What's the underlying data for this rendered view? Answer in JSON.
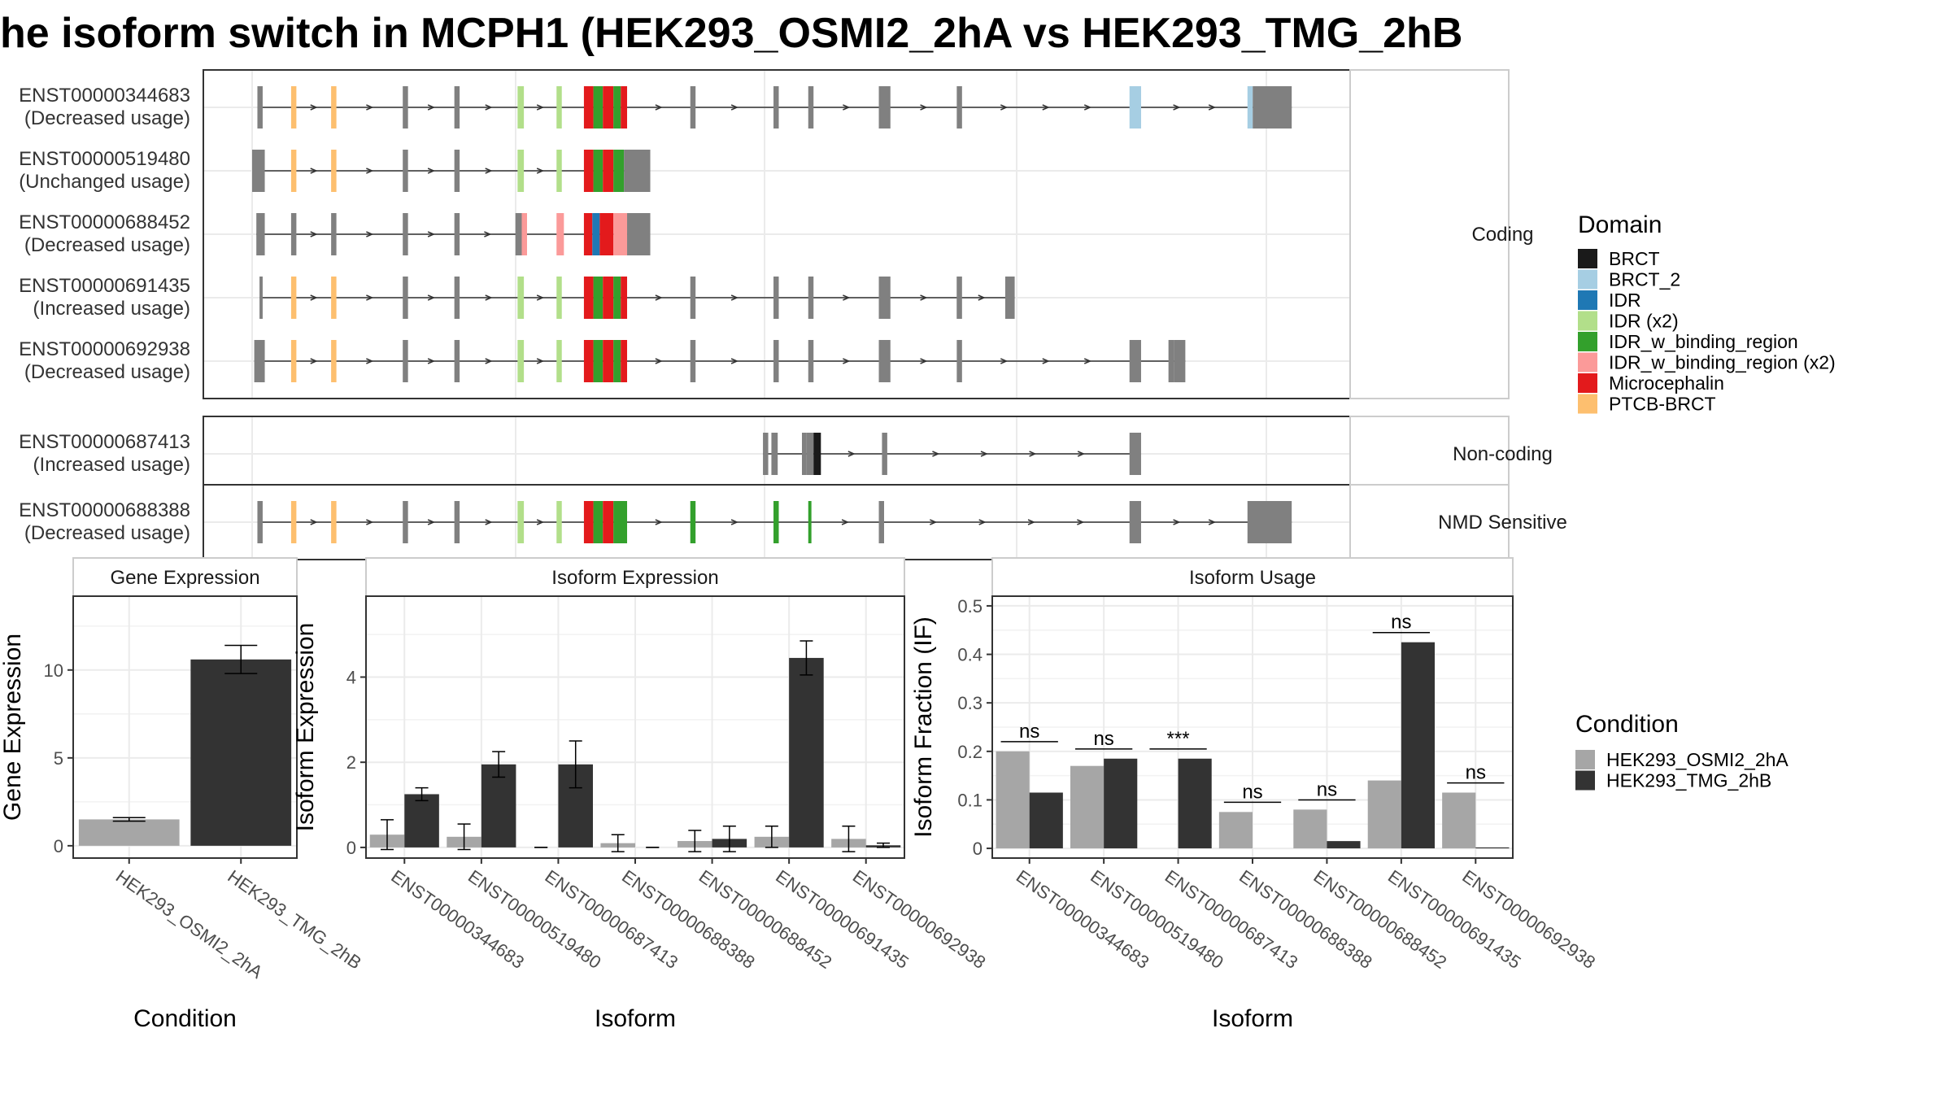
{
  "title": "he isoform switch in MCPH1 (HEK293_OSMI2_2hA vs HEK293_TMG_2hB",
  "colors": {
    "BRCT": "#1a1a1a",
    "BRCT_2": "#a6cee3",
    "IDR": "#1f78b4",
    "IDR (x2)": "#b2df8a",
    "IDR_w_binding_region": "#33a02c",
    "IDR_w_binding_region (x2)": "#fb9a99",
    "Microcephalin": "#e31a1c",
    "PTCB-BRCT": "#fdbf6f",
    "exon": "#808080",
    "cond_a": "#a6a6a6",
    "cond_b": "#333333"
  },
  "structure": {
    "genome_range": [
      0,
      100
    ],
    "panels": [
      {
        "label": "Coding",
        "isoforms": [
          {
            "id": "ENST00000344683",
            "usage": "(Decreased usage)",
            "exons": [
              [
                0.5,
                1.0,
                "exon"
              ],
              [
                3.7,
                4.2,
                "PTCB-BRCT"
              ],
              [
                7.5,
                8.0,
                "PTCB-BRCT"
              ],
              [
                14.3,
                14.8,
                "exon"
              ],
              [
                19.2,
                19.7,
                "exon"
              ],
              [
                25.2,
                25.8,
                "IDR (x2)"
              ],
              [
                28.9,
                29.4,
                "IDR (x2)"
              ],
              [
                31.5,
                32.4,
                "Microcephalin"
              ],
              [
                32.4,
                33.3,
                "IDR_w_binding_region"
              ],
              [
                33.3,
                34.3,
                "Microcephalin"
              ],
              [
                34.3,
                35.0,
                "IDR_w_binding_region"
              ],
              [
                35.0,
                35.6,
                "Microcephalin"
              ],
              [
                41.6,
                42.1,
                "exon"
              ],
              [
                49.5,
                50.0,
                "exon"
              ],
              [
                52.8,
                53.3,
                "exon"
              ],
              [
                59.5,
                60.6,
                "exon"
              ],
              [
                66.9,
                67.4,
                "exon"
              ],
              [
                83.3,
                84.4,
                "BRCT_2"
              ],
              [
                94.5,
                95.0,
                "BRCT_2"
              ],
              [
                95.0,
                98.7,
                "exon"
              ]
            ]
          },
          {
            "id": "ENST00000519480",
            "usage": "(Unchanged usage)",
            "exons": [
              [
                0.0,
                1.2,
                "exon"
              ],
              [
                3.7,
                4.2,
                "PTCB-BRCT"
              ],
              [
                7.5,
                8.0,
                "PTCB-BRCT"
              ],
              [
                14.3,
                14.8,
                "exon"
              ],
              [
                19.2,
                19.7,
                "exon"
              ],
              [
                25.2,
                25.8,
                "IDR (x2)"
              ],
              [
                28.9,
                29.4,
                "IDR (x2)"
              ],
              [
                31.5,
                32.4,
                "Microcephalin"
              ],
              [
                32.4,
                33.3,
                "IDR_w_binding_region"
              ],
              [
                33.3,
                34.3,
                "Microcephalin"
              ],
              [
                34.3,
                35.3,
                "IDR_w_binding_region"
              ],
              [
                35.3,
                37.8,
                "exon"
              ]
            ]
          },
          {
            "id": "ENST00000688452",
            "usage": "(Decreased usage)",
            "exons": [
              [
                0.4,
                1.2,
                "exon"
              ],
              [
                3.7,
                4.2,
                "exon"
              ],
              [
                7.5,
                8.0,
                "exon"
              ],
              [
                14.3,
                14.8,
                "exon"
              ],
              [
                19.2,
                19.7,
                "exon"
              ],
              [
                25.0,
                25.6,
                "exon"
              ],
              [
                25.6,
                26.1,
                "IDR_w_binding_region (x2)"
              ],
              [
                28.9,
                29.6,
                "IDR_w_binding_region (x2)"
              ],
              [
                31.5,
                32.3,
                "Microcephalin"
              ],
              [
                32.3,
                33.0,
                "IDR"
              ],
              [
                33.0,
                34.3,
                "Microcephalin"
              ],
              [
                34.3,
                35.6,
                "IDR_w_binding_region (x2)"
              ],
              [
                35.6,
                37.8,
                "exon"
              ]
            ]
          },
          {
            "id": "ENST00000691435",
            "usage": "(Increased usage)",
            "exons": [
              [
                0.7,
                1.0,
                "exon"
              ],
              [
                3.7,
                4.2,
                "PTCB-BRCT"
              ],
              [
                7.5,
                8.0,
                "PTCB-BRCT"
              ],
              [
                14.3,
                14.8,
                "exon"
              ],
              [
                19.2,
                19.7,
                "exon"
              ],
              [
                25.2,
                25.8,
                "IDR (x2)"
              ],
              [
                28.9,
                29.4,
                "IDR (x2)"
              ],
              [
                31.5,
                32.4,
                "Microcephalin"
              ],
              [
                32.4,
                33.3,
                "IDR_w_binding_region"
              ],
              [
                33.3,
                34.3,
                "Microcephalin"
              ],
              [
                34.3,
                35.0,
                "IDR_w_binding_region"
              ],
              [
                35.0,
                35.6,
                "Microcephalin"
              ],
              [
                41.6,
                42.1,
                "exon"
              ],
              [
                49.5,
                50.0,
                "exon"
              ],
              [
                52.8,
                53.3,
                "exon"
              ],
              [
                59.5,
                60.6,
                "exon"
              ],
              [
                66.9,
                67.4,
                "exon"
              ],
              [
                66.9,
                67.0,
                "exon"
              ],
              [
                71.5,
                72.4,
                "exon"
              ]
            ]
          },
          {
            "id": "ENST00000692938",
            "usage": "(Decreased usage)",
            "exons": [
              [
                0.2,
                1.2,
                "exon"
              ],
              [
                3.7,
                4.2,
                "PTCB-BRCT"
              ],
              [
                7.5,
                8.0,
                "PTCB-BRCT"
              ],
              [
                14.3,
                14.8,
                "exon"
              ],
              [
                19.2,
                19.7,
                "exon"
              ],
              [
                25.2,
                25.8,
                "IDR (x2)"
              ],
              [
                28.9,
                29.4,
                "IDR (x2)"
              ],
              [
                31.5,
                32.4,
                "Microcephalin"
              ],
              [
                32.4,
                33.3,
                "IDR_w_binding_region"
              ],
              [
                33.3,
                34.3,
                "Microcephalin"
              ],
              [
                34.3,
                35.0,
                "IDR_w_binding_region"
              ],
              [
                35.0,
                35.6,
                "Microcephalin"
              ],
              [
                41.6,
                42.1,
                "exon"
              ],
              [
                49.5,
                50.0,
                "exon"
              ],
              [
                52.8,
                53.3,
                "exon"
              ],
              [
                59.5,
                60.6,
                "exon"
              ],
              [
                66.9,
                67.4,
                "exon"
              ],
              [
                83.3,
                84.4,
                "exon"
              ],
              [
                87.0,
                87.5,
                "exon"
              ],
              [
                87.5,
                88.6,
                "exon"
              ]
            ]
          }
        ]
      },
      {
        "label": "Non-coding",
        "isoforms": [
          {
            "id": "ENST00000687413",
            "usage": "(Increased usage)",
            "exons": [
              [
                48.5,
                49.0,
                "exon"
              ],
              [
                49.3,
                49.9,
                "exon"
              ],
              [
                52.2,
                52.6,
                "exon"
              ],
              [
                52.6,
                53.3,
                "exon"
              ],
              [
                53.3,
                54.0,
                "BRCT"
              ],
              [
                59.8,
                60.3,
                "exon"
              ],
              [
                83.3,
                84.4,
                "exon"
              ]
            ]
          }
        ]
      },
      {
        "label": "NMD Sensitive",
        "isoforms": [
          {
            "id": "ENST00000688388",
            "usage": "(Decreased usage)",
            "exons": [
              [
                0.5,
                1.0,
                "exon"
              ],
              [
                3.7,
                4.2,
                "PTCB-BRCT"
              ],
              [
                7.5,
                8.0,
                "PTCB-BRCT"
              ],
              [
                14.3,
                14.8,
                "exon"
              ],
              [
                19.2,
                19.7,
                "exon"
              ],
              [
                25.2,
                25.8,
                "IDR (x2)"
              ],
              [
                28.9,
                29.4,
                "IDR (x2)"
              ],
              [
                31.5,
                32.4,
                "Microcephalin"
              ],
              [
                32.4,
                33.3,
                "IDR_w_binding_region"
              ],
              [
                33.3,
                34.3,
                "Microcephalin"
              ],
              [
                34.3,
                35.6,
                "IDR_w_binding_region"
              ],
              [
                41.6,
                42.1,
                "IDR_w_binding_region"
              ],
              [
                49.5,
                50.0,
                "IDR_w_binding_region"
              ],
              [
                52.8,
                53.1,
                "IDR_w_binding_region"
              ],
              [
                59.5,
                60.0,
                "exon"
              ],
              [
                83.3,
                84.4,
                "exon"
              ],
              [
                94.5,
                98.7,
                "exon"
              ]
            ]
          }
        ]
      }
    ]
  },
  "legend_domain": {
    "title": "Domain",
    "items": [
      "BRCT",
      "BRCT_2",
      "IDR",
      "IDR (x2)",
      "IDR_w_binding_region",
      "IDR_w_binding_region (x2)",
      "Microcephalin",
      "PTCB-BRCT"
    ]
  },
  "legend_condition": {
    "title": "Condition",
    "items": [
      "HEK293_OSMI2_2hA",
      "HEK293_TMG_2hB"
    ]
  },
  "chart_data": [
    {
      "type": "bar",
      "title": "Gene Expression",
      "xlabel": "Condition",
      "ylabel": "Gene Expression",
      "ylim": [
        -0.7,
        14.2
      ],
      "yticks": [
        0,
        5,
        10
      ],
      "categories": [
        "HEK293_OSMI2_2hA",
        "HEK293_TMG_2hB"
      ],
      "values": [
        1.5,
        10.6
      ],
      "errors": [
        0.1,
        0.8
      ],
      "grid": true
    },
    {
      "type": "bar",
      "title": "Isoform Expression",
      "xlabel": "Isoform",
      "ylabel": "Isoform Expression",
      "ylim": [
        -0.25,
        5.9
      ],
      "yticks": [
        0,
        2,
        4
      ],
      "categories": [
        "ENST00000344683",
        "ENST00000519480",
        "ENST00000687413",
        "ENST00000688388",
        "ENST00000688452",
        "ENST00000691435",
        "ENST00000692938"
      ],
      "series": [
        {
          "name": "HEK293_OSMI2_2hA",
          "values": [
            0.3,
            0.25,
            0.0,
            0.1,
            0.15,
            0.25,
            0.2
          ],
          "errors": [
            0.35,
            0.3,
            0.0,
            0.2,
            0.25,
            0.25,
            0.3
          ]
        },
        {
          "name": "HEK293_TMG_2hB",
          "values": [
            1.25,
            1.95,
            1.95,
            0.0,
            0.2,
            4.45,
            0.05
          ],
          "errors": [
            0.15,
            0.3,
            0.55,
            0.0,
            0.3,
            0.4,
            0.05
          ]
        }
      ],
      "grid": true
    },
    {
      "type": "bar",
      "title": "Isoform Usage",
      "xlabel": "Isoform",
      "ylabel": "Isoform Fraction (IF)",
      "ylim": [
        -0.02,
        0.52
      ],
      "yticks": [
        0.0,
        0.1,
        0.2,
        0.3,
        0.4,
        0.5
      ],
      "categories": [
        "ENST00000344683",
        "ENST00000519480",
        "ENST00000687413",
        "ENST00000688388",
        "ENST00000688452",
        "ENST00000691435",
        "ENST00000692938"
      ],
      "series": [
        {
          "name": "HEK293_OSMI2_2hA",
          "values": [
            0.2,
            0.17,
            0.0,
            0.075,
            0.08,
            0.14,
            0.115
          ]
        },
        {
          "name": "HEK293_TMG_2hB",
          "values": [
            0.115,
            0.185,
            0.185,
            0.0,
            0.015,
            0.425,
            0.002
          ]
        }
      ],
      "significance": [
        "ns",
        "ns",
        "***",
        "ns",
        "ns",
        "ns",
        "ns"
      ],
      "grid": true
    }
  ]
}
